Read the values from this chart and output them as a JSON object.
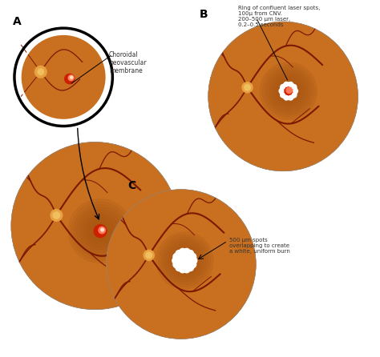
{
  "bg_color": "#ffffff",
  "eye_color": "#C87020",
  "eye_dark_color": "#9B4A10",
  "vessel_color": "#7A1800",
  "optic_color": "#E8A040",
  "cnv_red": "#CC2000",
  "cnv_orange": "#E05030",
  "white": "#FFFFFF",
  "label_color": "#222222",
  "annotation_color": "#333333",
  "panel_A": "A",
  "panel_B": "B",
  "panel_C": "C",
  "ann_A": "Choroidal\nneovascular\nmembrane",
  "ann_B": "Ring of confluent laser spots,\n100μ from CNV.\n200–500 μm laser,\n0.2–0.5 seconds",
  "ann_C": "500 μm spots\noverlapping to create\na white, uniform burn"
}
